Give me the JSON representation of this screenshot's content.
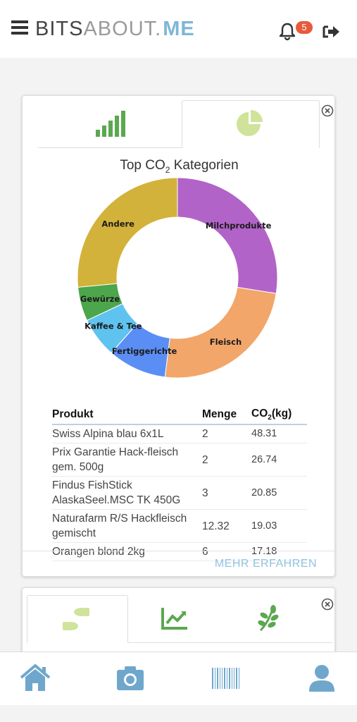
{
  "header": {
    "logo_bits": "BITS",
    "logo_about": "ABOUT.",
    "logo_me": "ME",
    "notification_count": "5"
  },
  "chart_card": {
    "tabs": [
      {
        "icon": "signal-bars-icon",
        "active": false
      },
      {
        "icon": "pie-chart-icon",
        "active": true
      }
    ],
    "title_prefix": "Top CO",
    "title_sub": "2",
    "title_suffix": " Kategorien",
    "more_label": "MEHR ERFAHREN",
    "table": {
      "headers": [
        "Produkt",
        "Menge",
        "CO",
        "2",
        "(kg)"
      ],
      "rows": [
        {
          "product": "Swiss Alpina blau 6x1L",
          "qty": "2",
          "co2": "48.31"
        },
        {
          "product": "Prix Garantie Hack-fleisch gem. 500g",
          "qty": "2",
          "co2": "26.74"
        },
        {
          "product": "Findus FishStick AlaskaSeel.MSC TK 450G",
          "qty": "3",
          "co2": "20.85"
        },
        {
          "product": "Naturafarm R/S Hackfleisch gemischt",
          "qty": "12.32",
          "co2": "19.03"
        },
        {
          "product": "Orangen blond 2kg",
          "qty": "6",
          "co2": "17.18"
        }
      ]
    }
  },
  "chart_data": {
    "type": "pie",
    "title": "Top CO2 Kategorien",
    "donut": true,
    "categories": [
      "Milchprodukte",
      "Fleisch",
      "Fertiggerichte",
      "Kaffee & Tee",
      "Gewürze",
      "Andere"
    ],
    "values": [
      27.5,
      24.5,
      9.5,
      6.5,
      5.5,
      26.5
    ],
    "colors": [
      "#b263c8",
      "#f2a66a",
      "#5b8ef5",
      "#5fc3f0",
      "#4ca64c",
      "#d2b23a"
    ]
  },
  "second_card": {
    "tabs": [
      {
        "icon": "footprints-icon",
        "active": true
      },
      {
        "icon": "trend-chart-icon",
        "active": false
      },
      {
        "icon": "leaf-icon",
        "active": false
      }
    ]
  },
  "bottom_nav": [
    {
      "icon": "home-icon"
    },
    {
      "icon": "camera-icon"
    },
    {
      "icon": "barcode-icon"
    },
    {
      "icon": "user-icon"
    }
  ],
  "colors": {
    "accent": "#7fb6d6",
    "badge": "#e85a3c",
    "tab_icon_green": "#5aa84f",
    "tab_icon_lime": "#cfe39a"
  }
}
